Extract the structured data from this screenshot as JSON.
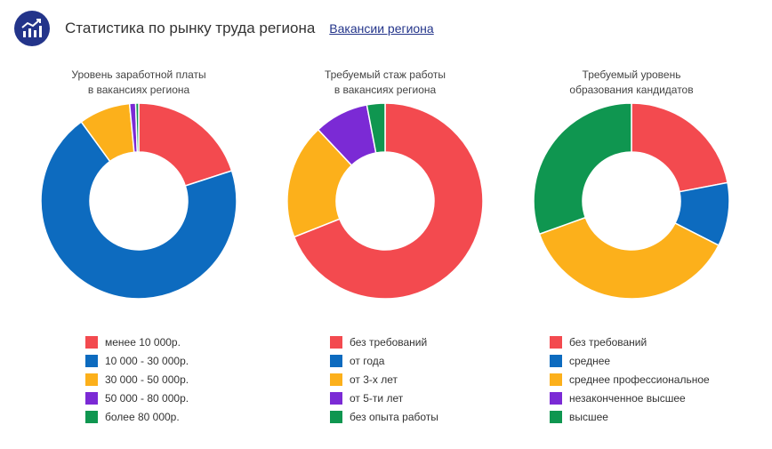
{
  "header": {
    "title": "Статистика по рынку труда региона",
    "link": "Вакансии региона"
  },
  "chart_data": [
    {
      "type": "pie",
      "variant": "donut",
      "title_lines": [
        "Уровень заработной платы",
        "в вакансиях региона"
      ],
      "categories": [
        "менее 10 000р.",
        "10 000 - 30 000р.",
        "30 000 - 50 000р.",
        "50 000 - 80 000р.",
        "более 80 000р."
      ],
      "values": [
        20,
        70,
        8.5,
        1,
        0.5
      ],
      "colors": [
        "#f34a4f",
        "#0d6bbf",
        "#fcb01b",
        "#7b2ad5",
        "#0f9650"
      ]
    },
    {
      "type": "pie",
      "variant": "donut",
      "title_lines": [
        "Требуемый стаж работы",
        "в вакансиях региона"
      ],
      "categories": [
        "без требований",
        "от года",
        "от 3-х лет",
        "от 5-ти лет",
        "без опыта работы"
      ],
      "values": [
        69,
        0,
        19,
        9,
        3
      ],
      "colors": [
        "#f34a4f",
        "#0d6bbf",
        "#fcb01b",
        "#7b2ad5",
        "#0f9650"
      ]
    },
    {
      "type": "pie",
      "variant": "donut",
      "title_lines": [
        "Требуемый уровень",
        "образования кандидатов"
      ],
      "categories": [
        "без требований",
        "среднее",
        "среднее профессиональное",
        "незаконченное высшее",
        "высшее"
      ],
      "values": [
        22,
        10.5,
        37,
        0,
        30.5
      ],
      "colors": [
        "#f34a4f",
        "#0d6bbf",
        "#fcb01b",
        "#7b2ad5",
        "#0f9650"
      ]
    }
  ]
}
